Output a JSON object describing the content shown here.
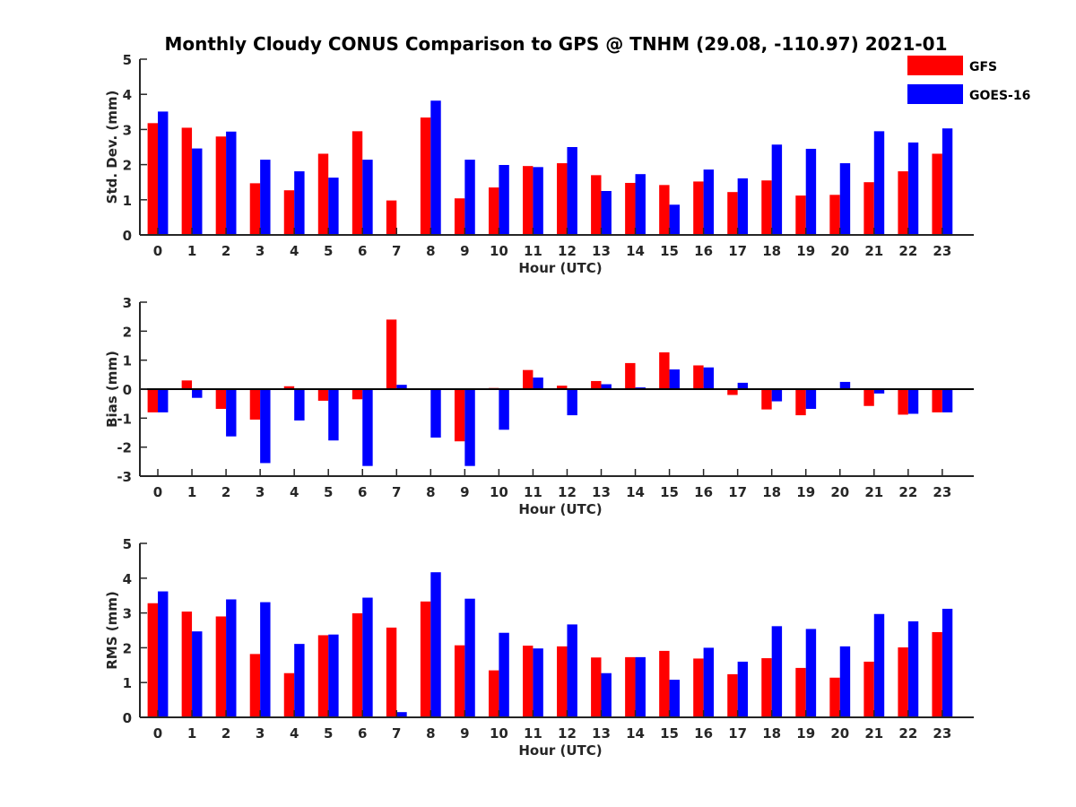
{
  "title": "Monthly Cloudy CONUS Comparison to GPS @ TNHM (29.08, -110.97) 2021-01",
  "legend": {
    "placement": "top-right",
    "entries": [
      {
        "name": "GFS",
        "color": "#ff0000"
      },
      {
        "name": "GOES-16",
        "color": "#0000ff"
      }
    ]
  },
  "chart_data": [
    {
      "type": "bar",
      "ylabel": "Std. Dev. (mm)",
      "xlabel": "Hour (UTC)",
      "ylim": [
        0,
        5
      ],
      "yticks": [
        0,
        1,
        2,
        3,
        4,
        5
      ],
      "categories": [
        "0",
        "1",
        "2",
        "3",
        "4",
        "5",
        "6",
        "7",
        "8",
        "9",
        "10",
        "11",
        "12",
        "13",
        "14",
        "15",
        "16",
        "17",
        "18",
        "19",
        "20",
        "21",
        "22",
        "23"
      ],
      "series": [
        {
          "name": "GFS",
          "color": "#ff0000",
          "values": [
            3.18,
            3.05,
            2.8,
            1.47,
            1.27,
            2.31,
            2.95,
            0.98,
            3.34,
            1.04,
            1.35,
            1.96,
            2.04,
            1.7,
            1.48,
            1.42,
            1.52,
            1.22,
            1.55,
            1.12,
            1.14,
            1.5,
            1.81,
            2.31
          ]
        },
        {
          "name": "GOES-16",
          "color": "#0000ff",
          "values": [
            3.51,
            2.46,
            2.94,
            2.14,
            1.81,
            1.63,
            2.14,
            0.02,
            3.82,
            2.14,
            1.99,
            1.93,
            2.5,
            1.25,
            1.73,
            0.86,
            1.86,
            1.61,
            2.57,
            2.45,
            2.04,
            2.95,
            2.63,
            3.03
          ]
        }
      ]
    },
    {
      "type": "bar",
      "ylabel": "Bias (mm)",
      "xlabel": "Hour (UTC)",
      "ylim": [
        -3,
        3
      ],
      "yticks": [
        -3,
        -2,
        -1,
        0,
        1,
        2,
        3
      ],
      "categories": [
        "0",
        "1",
        "2",
        "3",
        "4",
        "5",
        "6",
        "7",
        "8",
        "9",
        "10",
        "11",
        "12",
        "13",
        "14",
        "15",
        "16",
        "17",
        "18",
        "19",
        "20",
        "21",
        "22",
        "23"
      ],
      "series": [
        {
          "name": "GFS",
          "color": "#ff0000",
          "values": [
            -0.8,
            0.3,
            -0.68,
            -1.05,
            0.1,
            -0.4,
            -0.35,
            2.4,
            0.0,
            -1.8,
            0.04,
            0.66,
            0.12,
            0.28,
            0.9,
            1.27,
            0.82,
            -0.2,
            -0.7,
            -0.9,
            0.0,
            -0.58,
            -0.88,
            -0.8
          ]
        },
        {
          "name": "GOES-16",
          "color": "#0000ff",
          "values": [
            -0.8,
            -0.3,
            -1.63,
            -2.55,
            -1.08,
            -1.77,
            -2.65,
            0.15,
            -1.67,
            -2.65,
            -1.4,
            0.4,
            -0.9,
            0.17,
            0.06,
            0.68,
            0.75,
            0.22,
            -0.42,
            -0.68,
            0.25,
            -0.15,
            -0.85,
            -0.8
          ]
        }
      ]
    },
    {
      "type": "bar",
      "ylabel": "RMS (mm)",
      "xlabel": "Hour (UTC)",
      "ylim": [
        0,
        5
      ],
      "yticks": [
        0,
        1,
        2,
        3,
        4,
        5
      ],
      "categories": [
        "0",
        "1",
        "2",
        "3",
        "4",
        "5",
        "6",
        "7",
        "8",
        "9",
        "10",
        "11",
        "12",
        "13",
        "14",
        "15",
        "16",
        "17",
        "18",
        "19",
        "20",
        "21",
        "22",
        "23"
      ],
      "series": [
        {
          "name": "GFS",
          "color": "#ff0000",
          "values": [
            3.28,
            3.04,
            2.9,
            1.82,
            1.27,
            2.36,
            2.99,
            2.58,
            3.33,
            2.07,
            1.35,
            2.06,
            2.04,
            1.72,
            1.73,
            1.91,
            1.69,
            1.24,
            1.7,
            1.42,
            1.14,
            1.6,
            2.01,
            2.45
          ]
        },
        {
          "name": "GOES-16",
          "color": "#0000ff",
          "values": [
            3.62,
            2.47,
            3.39,
            3.31,
            2.11,
            2.38,
            3.44,
            0.15,
            4.17,
            3.41,
            2.43,
            1.98,
            2.67,
            1.27,
            1.73,
            1.08,
            2.0,
            1.6,
            2.62,
            2.54,
            2.04,
            2.97,
            2.76,
            3.12
          ]
        }
      ]
    }
  ]
}
